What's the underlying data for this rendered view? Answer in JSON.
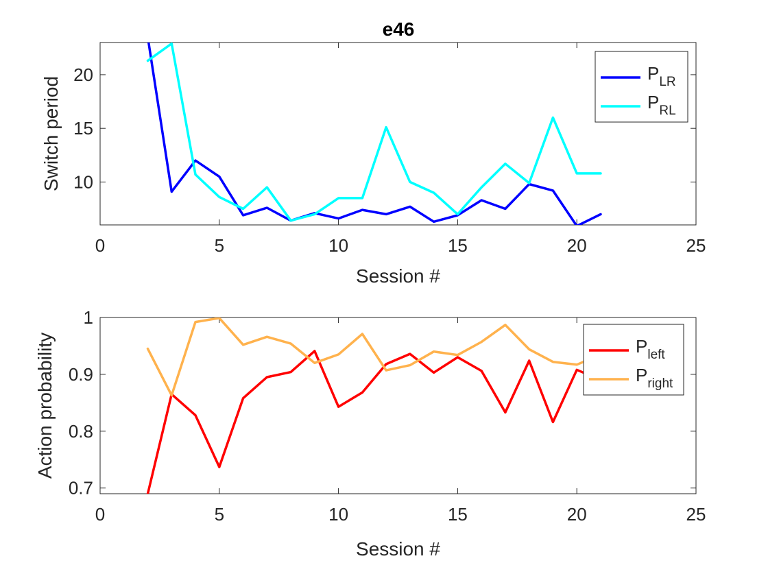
{
  "figure": {
    "title": "e46"
  },
  "chart_data": [
    {
      "type": "line",
      "title": "e46",
      "xlabel": "Session #",
      "ylabel": "Switch period",
      "xlim": [
        0,
        25
      ],
      "ylim": [
        6,
        23
      ],
      "xticks": [
        0,
        5,
        10,
        15,
        20,
        25
      ],
      "yticks": [
        10,
        15,
        20
      ],
      "grid": false,
      "legend_position": "top-right",
      "x": [
        2,
        3,
        4,
        5,
        6,
        7,
        8,
        9,
        10,
        11,
        12,
        13,
        14,
        15,
        16,
        17,
        18,
        19,
        20,
        21
      ],
      "series": [
        {
          "name": "P_LR",
          "legend_main": "P",
          "legend_sub": "LR",
          "color": "#0000FF",
          "values": [
            23.5,
            9.1,
            12.0,
            10.5,
            6.9,
            7.6,
            6.4,
            7.1,
            6.6,
            7.4,
            7.0,
            7.7,
            6.3,
            6.9,
            8.3,
            7.5,
            9.8,
            9.2,
            5.9,
            7.0
          ]
        },
        {
          "name": "P_RL",
          "legend_main": "P",
          "legend_sub": "RL",
          "color": "#00FFFF",
          "values": [
            21.3,
            22.9,
            10.7,
            8.6,
            7.5,
            9.5,
            6.4,
            7.0,
            8.5,
            8.5,
            15.1,
            10.0,
            9.0,
            7.0,
            9.5,
            11.7,
            9.9,
            16.0,
            10.8,
            10.8
          ]
        }
      ]
    },
    {
      "type": "line",
      "xlabel": "Session #",
      "ylabel": "Action probability",
      "xlim": [
        0,
        25
      ],
      "ylim": [
        0.69,
        1.0
      ],
      "xticks": [
        0,
        5,
        10,
        15,
        20,
        25
      ],
      "yticks": [
        0.7,
        0.8,
        0.9,
        1.0
      ],
      "ytick_labels": [
        "0.7",
        "0.8",
        "0.9",
        "1"
      ],
      "grid": false,
      "legend_position": "top-right",
      "x": [
        2,
        3,
        4,
        5,
        6,
        7,
        8,
        9,
        10,
        11,
        12,
        13,
        14,
        15,
        16,
        17,
        18,
        19,
        20,
        21
      ],
      "series": [
        {
          "name": "P_left",
          "legend_main": "P",
          "legend_sub": "left",
          "color": "#FF0000",
          "values": [
            0.69,
            0.865,
            0.828,
            0.737,
            0.858,
            0.895,
            0.904,
            0.941,
            0.843,
            0.868,
            0.918,
            0.936,
            0.903,
            0.93,
            0.906,
            0.833,
            0.924,
            0.816,
            0.908,
            0.89
          ]
        },
        {
          "name": "P_right",
          "legend_main": "P",
          "legend_sub": "right",
          "color": "#FFB24D",
          "values": [
            0.945,
            0.863,
            0.992,
            0.999,
            0.952,
            0.966,
            0.954,
            0.92,
            0.935,
            0.971,
            0.907,
            0.916,
            0.94,
            0.934,
            0.957,
            0.987,
            0.944,
            0.922,
            0.917,
            0.935
          ]
        }
      ]
    }
  ]
}
